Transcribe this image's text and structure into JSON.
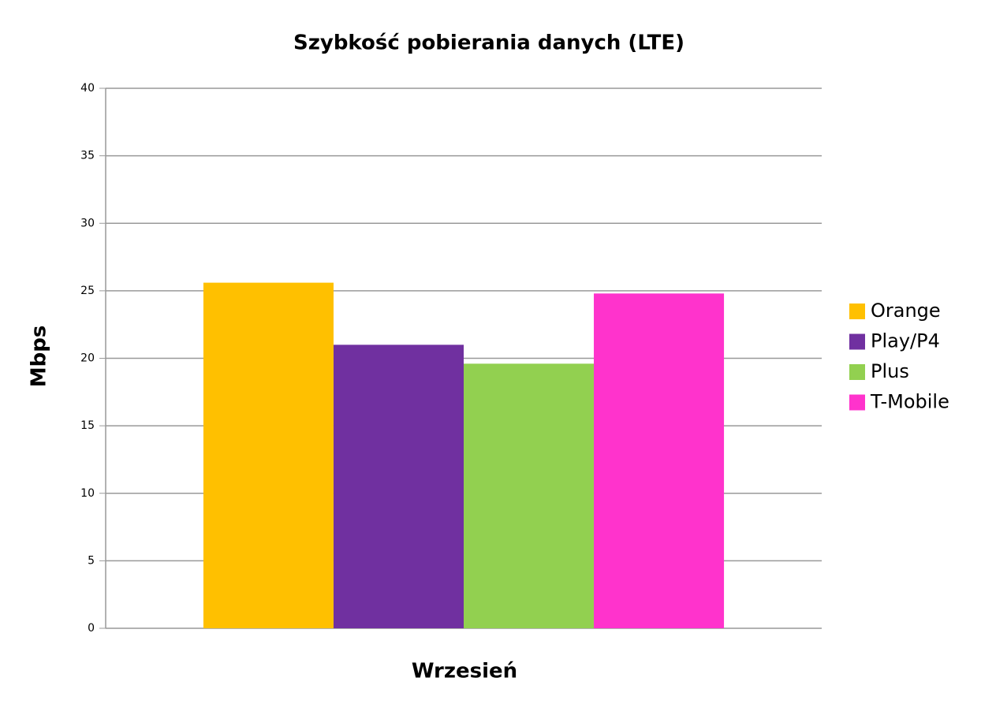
{
  "chart_data": {
    "type": "bar",
    "title": "Szybkość pobierania danych (LTE)",
    "ylabel": "Mbps",
    "categories": [
      "Wrzesień"
    ],
    "series": [
      {
        "name": "Orange",
        "color": "#ffc000",
        "values": [
          25.6
        ]
      },
      {
        "name": "Play/P4",
        "color": "#7030a0",
        "values": [
          21.0
        ]
      },
      {
        "name": "Plus",
        "color": "#92d050",
        "values": [
          19.6
        ]
      },
      {
        "name": "T-Mobile",
        "color": "#ff33cc",
        "values": [
          24.8
        ]
      }
    ],
    "ylim": [
      0,
      40
    ],
    "yticks": [
      0,
      5,
      10,
      15,
      20,
      25,
      30,
      35,
      40
    ],
    "grid": true,
    "legend": "right"
  }
}
